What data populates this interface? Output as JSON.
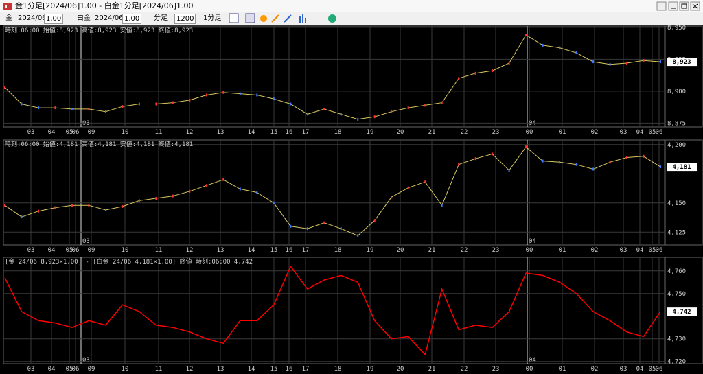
{
  "window": {
    "title": "金1分足[2024/06]1.00 - 白金1分足[2024/06]1.00"
  },
  "toolbar": {
    "items": [
      "金",
      "2024/06",
      "1.00",
      "白金",
      "2024/06",
      "1.00",
      "分足",
      "1200",
      "1分足"
    ]
  },
  "time_labels": [
    "03",
    "04",
    "05",
    "06",
    "09",
    "10",
    "11",
    "12",
    "13",
    "14",
    "15",
    "16",
    "17",
    "18",
    "19",
    "20",
    "21",
    "22",
    "23",
    "00",
    "01",
    "02",
    "03",
    "04",
    "05",
    "06"
  ],
  "date_markers": [
    "03",
    "04"
  ],
  "charts": [
    {
      "type": "line",
      "header": "時刻:06:00 始値:8,923 高値:8,923 安値:8,923 終値:8,923",
      "color": "#d8c860",
      "up_color": "#ff3030",
      "down_color": "#3a7bff",
      "ylim": [
        8872,
        8951
      ],
      "yticks": [
        {
          "value": 8950,
          "label": "8,950"
        },
        {
          "value": 8925,
          "label": "8,925"
        },
        {
          "value": 8900,
          "label": "8,900"
        },
        {
          "value": 8875,
          "label": "8,875"
        }
      ],
      "last_label": "8,923",
      "values": [
        8903,
        8890,
        8887,
        8887,
        8886,
        8886,
        8884,
        8888,
        8890,
        8890,
        8891,
        8893,
        8897,
        8899,
        8898,
        8897,
        8894,
        8890,
        8882,
        8886,
        8882,
        8878,
        8880,
        8884,
        8887,
        8889,
        8891,
        8910,
        8914,
        8916,
        8922,
        8944,
        8936,
        8934,
        8930,
        8923,
        8921,
        8922,
        8924,
        8923
      ]
    },
    {
      "type": "line",
      "header": "時刻:06:00 始値:4,181 高値:4,181 安値:4,181 終値:4,181",
      "color": "#d8c860",
      "up_color": "#ff3030",
      "down_color": "#3a7bff",
      "ylim": [
        4114,
        4204
      ],
      "yticks": [
        {
          "value": 4200,
          "label": "4,200"
        },
        {
          "value": 4150,
          "label": "4,150"
        },
        {
          "value": 4125,
          "label": "4,125"
        }
      ],
      "last_label": "4,181",
      "values": [
        4148,
        4138,
        4143,
        4146,
        4148,
        4148,
        4144,
        4147,
        4152,
        4154,
        4156,
        4160,
        4165,
        4170,
        4162,
        4159,
        4150,
        4130,
        4128,
        4133,
        4128,
        4122,
        4135,
        4155,
        4163,
        4168,
        4148,
        4183,
        4188,
        4192,
        4178,
        4198,
        4186,
        4185,
        4183,
        4179,
        4185,
        4189,
        4190,
        4181
      ]
    },
    {
      "type": "line",
      "header": "[金 24/06 8,923×1.00] - [白金 24/06 4,181×1.00] 終値 時刻:06:00 4,742",
      "color": "#ff0000",
      "ylim": [
        4719,
        4766
      ],
      "yticks": [
        {
          "value": 4760,
          "label": "4,760"
        },
        {
          "value": 4750,
          "label": "4,750"
        },
        {
          "value": 4730,
          "label": "4,730"
        },
        {
          "value": 4720,
          "label": "4,720"
        }
      ],
      "last_label": "4,742",
      "values": [
        4757,
        4742,
        4738,
        4737,
        4735,
        4738,
        4736,
        4745,
        4742,
        4736,
        4735,
        4733,
        4730,
        4728,
        4738,
        4738,
        4745,
        4762,
        4752,
        4756,
        4758,
        4755,
        4738,
        4730,
        4731,
        4723,
        4752,
        4734,
        4736,
        4735,
        4742,
        4759,
        4758,
        4755,
        4750,
        4742,
        4738,
        4733,
        4731,
        4742
      ]
    }
  ]
}
